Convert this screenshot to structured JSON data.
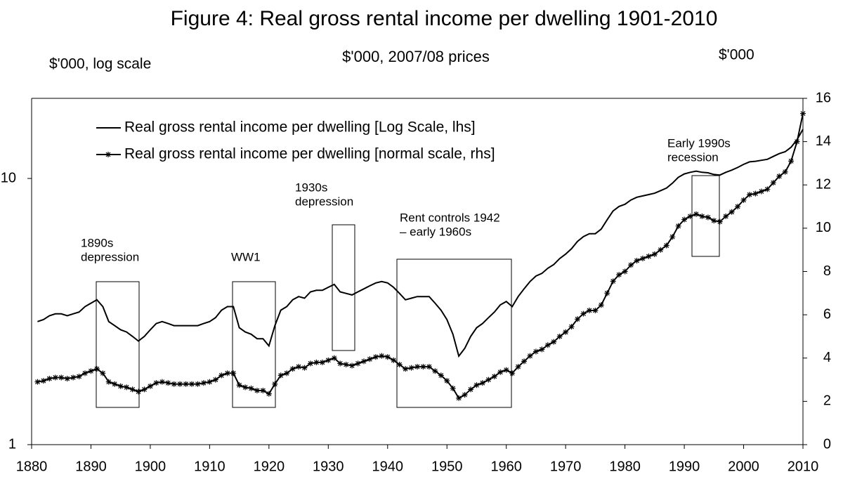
{
  "chart_data": {
    "type": "line",
    "title": "Figure 4: Real gross rental income per dwelling 1901-2010",
    "subtitle": "$'000, 2007/08 prices",
    "y_label": "$'000, log scale",
    "y2_label": "$'000",
    "x": [
      1881,
      1882,
      1883,
      1884,
      1885,
      1886,
      1887,
      1888,
      1889,
      1890,
      1891,
      1892,
      1893,
      1894,
      1895,
      1896,
      1897,
      1898,
      1899,
      1900,
      1901,
      1902,
      1903,
      1904,
      1905,
      1906,
      1907,
      1908,
      1909,
      1910,
      1911,
      1912,
      1913,
      1914,
      1915,
      1916,
      1917,
      1918,
      1919,
      1920,
      1921,
      1922,
      1923,
      1924,
      1925,
      1926,
      1927,
      1928,
      1929,
      1930,
      1931,
      1932,
      1933,
      1934,
      1935,
      1936,
      1937,
      1938,
      1939,
      1940,
      1941,
      1942,
      1943,
      1944,
      1945,
      1946,
      1947,
      1948,
      1949,
      1950,
      1951,
      1952,
      1953,
      1954,
      1955,
      1956,
      1957,
      1958,
      1959,
      1960,
      1961,
      1962,
      1963,
      1964,
      1965,
      1966,
      1967,
      1968,
      1969,
      1970,
      1971,
      1972,
      1973,
      1974,
      1975,
      1976,
      1977,
      1978,
      1979,
      1980,
      1981,
      1982,
      1983,
      1984,
      1985,
      1986,
      1987,
      1988,
      1989,
      1990,
      1991,
      1992,
      1993,
      1994,
      1995,
      1996,
      1997,
      1998,
      1999,
      2000,
      2001,
      2002,
      2003,
      2004,
      2005,
      2006,
      2007,
      2008,
      2009,
      2010
    ],
    "series": [
      {
        "name": "Real gross rental income per dwelling [Log Scale, lhs]",
        "color": "#000000",
        "axis": "y",
        "marker": "none",
        "values": [
          2.9,
          2.95,
          3.05,
          3.1,
          3.1,
          3.05,
          3.1,
          3.15,
          3.3,
          3.4,
          3.5,
          3.3,
          2.9,
          2.8,
          2.7,
          2.65,
          2.55,
          2.45,
          2.55,
          2.7,
          2.85,
          2.9,
          2.85,
          2.8,
          2.8,
          2.8,
          2.8,
          2.8,
          2.85,
          2.9,
          3.0,
          3.2,
          3.3,
          3.3,
          2.75,
          2.65,
          2.6,
          2.5,
          2.5,
          2.35,
          2.8,
          3.2,
          3.3,
          3.5,
          3.6,
          3.55,
          3.75,
          3.8,
          3.8,
          3.9,
          4.0,
          3.75,
          3.7,
          3.65,
          3.75,
          3.85,
          3.95,
          4.05,
          4.1,
          4.05,
          3.9,
          3.7,
          3.5,
          3.55,
          3.6,
          3.6,
          3.6,
          3.4,
          3.2,
          2.95,
          2.6,
          2.15,
          2.3,
          2.55,
          2.75,
          2.85,
          3.0,
          3.15,
          3.35,
          3.45,
          3.3,
          3.6,
          3.85,
          4.1,
          4.3,
          4.4,
          4.6,
          4.75,
          5.0,
          5.2,
          5.45,
          5.8,
          6.05,
          6.2,
          6.2,
          6.45,
          7.0,
          7.55,
          7.85,
          8.0,
          8.3,
          8.5,
          8.6,
          8.7,
          8.8,
          9.0,
          9.2,
          9.6,
          10.1,
          10.4,
          10.55,
          10.65,
          10.55,
          10.5,
          10.35,
          10.3,
          10.55,
          10.75,
          11.0,
          11.3,
          11.55,
          11.6,
          11.7,
          11.8,
          12.1,
          12.4,
          12.6,
          13.1,
          14.0,
          15.3
        ]
      },
      {
        "name": "Real gross rental income per dwelling [normal scale, rhs]",
        "color": "#000000",
        "axis": "y2",
        "marker": "star",
        "values": [
          2.9,
          2.95,
          3.05,
          3.1,
          3.1,
          3.05,
          3.1,
          3.15,
          3.3,
          3.4,
          3.5,
          3.3,
          2.9,
          2.8,
          2.7,
          2.65,
          2.55,
          2.45,
          2.55,
          2.7,
          2.85,
          2.9,
          2.85,
          2.8,
          2.8,
          2.8,
          2.8,
          2.8,
          2.85,
          2.9,
          3.0,
          3.2,
          3.3,
          3.3,
          2.75,
          2.65,
          2.6,
          2.5,
          2.5,
          2.35,
          2.8,
          3.2,
          3.3,
          3.5,
          3.6,
          3.55,
          3.75,
          3.8,
          3.8,
          3.9,
          4.0,
          3.75,
          3.7,
          3.65,
          3.75,
          3.85,
          3.95,
          4.05,
          4.1,
          4.05,
          3.9,
          3.7,
          3.5,
          3.55,
          3.6,
          3.6,
          3.6,
          3.4,
          3.2,
          2.95,
          2.6,
          2.15,
          2.3,
          2.55,
          2.75,
          2.85,
          3.0,
          3.15,
          3.35,
          3.45,
          3.3,
          3.6,
          3.85,
          4.1,
          4.3,
          4.4,
          4.6,
          4.75,
          5.0,
          5.2,
          5.45,
          5.8,
          6.05,
          6.2,
          6.2,
          6.45,
          7.0,
          7.55,
          7.85,
          8.0,
          8.3,
          8.5,
          8.6,
          8.7,
          8.8,
          9.0,
          9.2,
          9.6,
          10.1,
          10.4,
          10.55,
          10.65,
          10.55,
          10.5,
          10.35,
          10.3,
          10.55,
          10.75,
          11.0,
          11.3,
          11.55,
          11.6,
          11.7,
          11.8,
          12.1,
          12.4,
          12.6,
          13.1,
          14.0,
          15.3
        ]
      }
    ],
    "xlim": [
      1880,
      2010
    ],
    "xticks": [
      1880,
      1890,
      1900,
      1910,
      1920,
      1930,
      1940,
      1950,
      1960,
      1970,
      1980,
      1990,
      2000,
      2010
    ],
    "ylim": [
      1,
      20
    ],
    "yticks": [
      1,
      10
    ],
    "ylog": true,
    "y2lim": [
      0,
      16
    ],
    "y2ticks": [
      0,
      2,
      4,
      6,
      8,
      10,
      12,
      14,
      16
    ],
    "legend": "top-left",
    "annotations": [
      {
        "lines": [
          "1890s",
          "depression"
        ]
      },
      {
        "lines": [
          "WW1"
        ]
      },
      {
        "lines": [
          "1930s",
          "depression"
        ]
      },
      {
        "lines": [
          "Rent controls 1942",
          "– early 1960s"
        ]
      },
      {
        "lines": [
          "Early 1990s",
          "recession"
        ]
      }
    ]
  }
}
